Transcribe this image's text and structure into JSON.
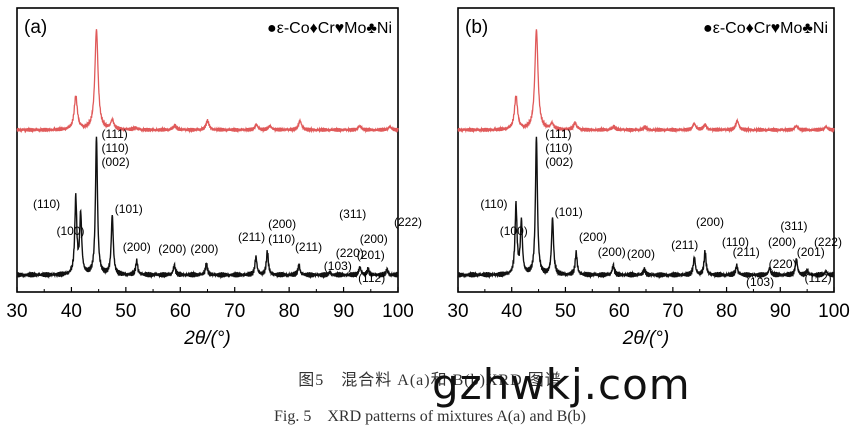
{
  "chart_data": [
    {
      "type": "line",
      "panel_label": "(a)",
      "xlabel": "2θ/(°)",
      "xlim": [
        30,
        100
      ],
      "xticks": [
        30,
        40,
        50,
        60,
        70,
        80,
        90,
        100
      ],
      "legend": [
        {
          "marker": "●",
          "label": "ε-Co"
        },
        {
          "marker": "♦",
          "label": "Cr"
        },
        {
          "marker": "♥",
          "label": "Mo"
        },
        {
          "marker": "♣",
          "label": "Ni"
        }
      ],
      "colors": {
        "mixture_upper": "#e05a5a",
        "mixture_lower": "#111111"
      },
      "series": [
        {
          "key": "upper",
          "baseline": 0.13,
          "peaks": [
            [
              40.8,
              0.33
            ],
            [
              44.6,
              1.0
            ],
            [
              47.5,
              0.09
            ],
            [
              51.8,
              0.02
            ],
            [
              59.0,
              0.04
            ],
            [
              65.0,
              0.09
            ],
            [
              74.0,
              0.05
            ],
            [
              76.5,
              0.04
            ],
            [
              82.0,
              0.09
            ],
            [
              93.0,
              0.04
            ],
            [
              98.5,
              0.03
            ]
          ]
        },
        {
          "key": "lower",
          "baseline": 0.0,
          "peaks": [
            [
              40.8,
              0.55
            ],
            [
              41.7,
              0.43
            ],
            [
              44.6,
              1.0
            ],
            [
              47.5,
              0.43
            ],
            [
              52.0,
              0.1
            ],
            [
              58.9,
              0.07
            ],
            [
              64.8,
              0.08
            ],
            [
              73.9,
              0.13
            ],
            [
              76.0,
              0.17
            ],
            [
              81.8,
              0.07
            ],
            [
              87.5,
              0.02
            ],
            [
              93.0,
              0.06
            ],
            [
              94.5,
              0.04
            ],
            [
              98.0,
              0.04
            ]
          ]
        }
      ],
      "annotations": [
        {
          "text": "(111)",
          "x": 44.8
        },
        {
          "text": "(110)",
          "x": 44.8
        },
        {
          "text": "(002)",
          "x": 44.8
        },
        {
          "text": "(110)",
          "x": 40.3
        },
        {
          "text": "(100)",
          "x": 41.3
        },
        {
          "text": "(101)",
          "x": 47.6
        },
        {
          "text": "(200)",
          "x": 52.0
        },
        {
          "text": "(200)",
          "x": 58.9
        },
        {
          "text": "(200)",
          "x": 64.8
        },
        {
          "text": "(211)",
          "x": 73.9
        },
        {
          "text": "(200)",
          "x": 76.5
        },
        {
          "text": "(110)",
          "x": 76.5
        },
        {
          "text": "(211)",
          "x": 81.8
        },
        {
          "text": "(103)",
          "x": 86.0
        },
        {
          "text": "(311)",
          "x": 92.5
        },
        {
          "text": "(222)",
          "x": 97.8
        },
        {
          "text": "(220)",
          "x": 91.5
        },
        {
          "text": "(200)",
          "x": 93.7
        },
        {
          "text": "(201)",
          "x": 95.0
        },
        {
          "text": "(112)",
          "x": 94.5
        }
      ]
    },
    {
      "type": "line",
      "panel_label": "(b)",
      "xlabel": "2θ/(°)",
      "xlim": [
        30,
        100
      ],
      "xticks": [
        30,
        40,
        50,
        60,
        70,
        80,
        90,
        100
      ],
      "legend": [
        {
          "marker": "●",
          "label": "ε-Co"
        },
        {
          "marker": "♦",
          "label": "Cr"
        },
        {
          "marker": "♥",
          "label": "Mo"
        },
        {
          "marker": "♣",
          "label": "Ni"
        }
      ],
      "colors": {
        "mixture_upper": "#e05a5a",
        "mixture_lower": "#111111"
      },
      "series": [
        {
          "key": "upper",
          "baseline": 0.13,
          "peaks": [
            [
              40.8,
              0.33
            ],
            [
              44.6,
              1.0
            ],
            [
              47.5,
              0.06
            ],
            [
              51.8,
              0.07
            ],
            [
              59.0,
              0.03
            ],
            [
              64.8,
              0.03
            ],
            [
              74.0,
              0.06
            ],
            [
              76.0,
              0.05
            ],
            [
              82.0,
              0.09
            ],
            [
              93.0,
              0.04
            ],
            [
              98.5,
              0.03
            ]
          ]
        },
        {
          "key": "lower",
          "baseline": 0.0,
          "peaks": [
            [
              40.8,
              0.5
            ],
            [
              41.8,
              0.38
            ],
            [
              44.6,
              1.0
            ],
            [
              47.6,
              0.41
            ],
            [
              52.0,
              0.16
            ],
            [
              58.9,
              0.07
            ],
            [
              64.7,
              0.04
            ],
            [
              74.0,
              0.13
            ],
            [
              76.0,
              0.17
            ],
            [
              81.9,
              0.07
            ],
            [
              88.0,
              0.05
            ],
            [
              93.0,
              0.12
            ],
            [
              95.0,
              0.03
            ],
            [
              98.5,
              0.03
            ]
          ]
        }
      ],
      "annotations": [
        {
          "text": "(111)",
          "x": 45.5
        },
        {
          "text": "(110)",
          "x": 45.5
        },
        {
          "text": "(002)",
          "x": 45.5
        },
        {
          "text": "(110)",
          "x": 40.5
        },
        {
          "text": "(100)",
          "x": 41.5
        },
        {
          "text": "(101)",
          "x": 48.0
        },
        {
          "text": "(200)",
          "x": 52.5
        },
        {
          "text": "(200)",
          "x": 59.0
        },
        {
          "text": "(200)",
          "x": 64.8
        },
        {
          "text": "(211)",
          "x": 73.4
        },
        {
          "text": "(200)",
          "x": 75.8
        },
        {
          "text": "(110)",
          "x": 79.5
        },
        {
          "text": "(211)",
          "x": 81.5
        },
        {
          "text": "(103)",
          "x": 84.0
        },
        {
          "text": "(311)",
          "x": 93.0
        },
        {
          "text": "(200)",
          "x": 91.8
        },
        {
          "text": "(220)",
          "x": 90.8
        },
        {
          "text": "(201)",
          "x": 95.3
        },
        {
          "text": "(222)",
          "x": 98.5
        },
        {
          "text": "(112)",
          "x": 96.0
        }
      ]
    }
  ],
  "caption_cn": "图5　混合料 A(a)和 B(b)XRD 图谱",
  "caption_en": "Fig. 5　XRD patterns of mixtures A(a) and B(b)",
  "watermark": "gzhwkj.com"
}
